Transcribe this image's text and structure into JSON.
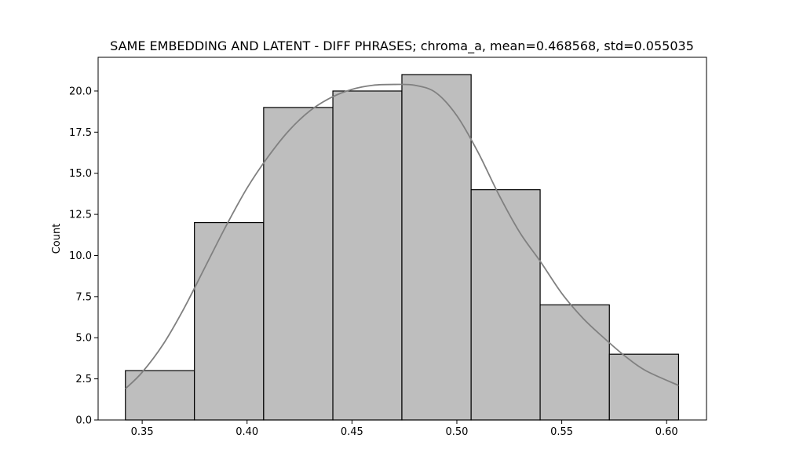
{
  "chart_data": {
    "type": "bar",
    "title": "SAME EMBEDDING AND LATENT - DIFF PHRASES; chroma_a, mean=0.468568, std=0.055035",
    "xlabel": "",
    "ylabel": "Count",
    "bin_edges": [
      0.342,
      0.3749,
      0.4079,
      0.4409,
      0.4738,
      0.5068,
      0.5397,
      0.5727,
      0.6057
    ],
    "counts": [
      3,
      12,
      19,
      20,
      21,
      14,
      7,
      4
    ],
    "xlim": [
      0.329,
      0.619
    ],
    "ylim": [
      0,
      22.05
    ],
    "xticks": [
      0.35,
      0.4,
      0.45,
      0.5,
      0.55,
      0.6
    ],
    "xtick_labels": [
      "0.35",
      "0.40",
      "0.45",
      "0.50",
      "0.55",
      "0.60"
    ],
    "yticks": [
      0,
      2.5,
      5,
      7.5,
      10,
      12.5,
      15,
      17.5,
      20
    ],
    "ytick_labels": [
      "0.0",
      "2.5",
      "5.0",
      "7.5",
      "10.0",
      "12.5",
      "15.0",
      "17.5",
      "20.0"
    ],
    "kde_curve": {
      "x": [
        0.342,
        0.35,
        0.36,
        0.37,
        0.38,
        0.39,
        0.4,
        0.41,
        0.42,
        0.43,
        0.44,
        0.45,
        0.46,
        0.47,
        0.48,
        0.49,
        0.5,
        0.51,
        0.52,
        0.53,
        0.54,
        0.55,
        0.56,
        0.57,
        0.58,
        0.59,
        0.6057
      ],
      "y": [
        1.9,
        2.9,
        4.6,
        6.8,
        9.3,
        11.8,
        14.1,
        16.0,
        17.6,
        18.8,
        19.6,
        20.1,
        20.35,
        20.4,
        20.35,
        19.9,
        18.5,
        16.3,
        13.7,
        11.4,
        9.6,
        7.7,
        6.2,
        5.0,
        3.9,
        3.0,
        2.1
      ]
    },
    "grid": false,
    "legend": "none",
    "colors": {
      "bar_fill": "#bebebe",
      "bar_edge": "#000000",
      "kde_line": "#808080",
      "axis": "#000000"
    }
  }
}
